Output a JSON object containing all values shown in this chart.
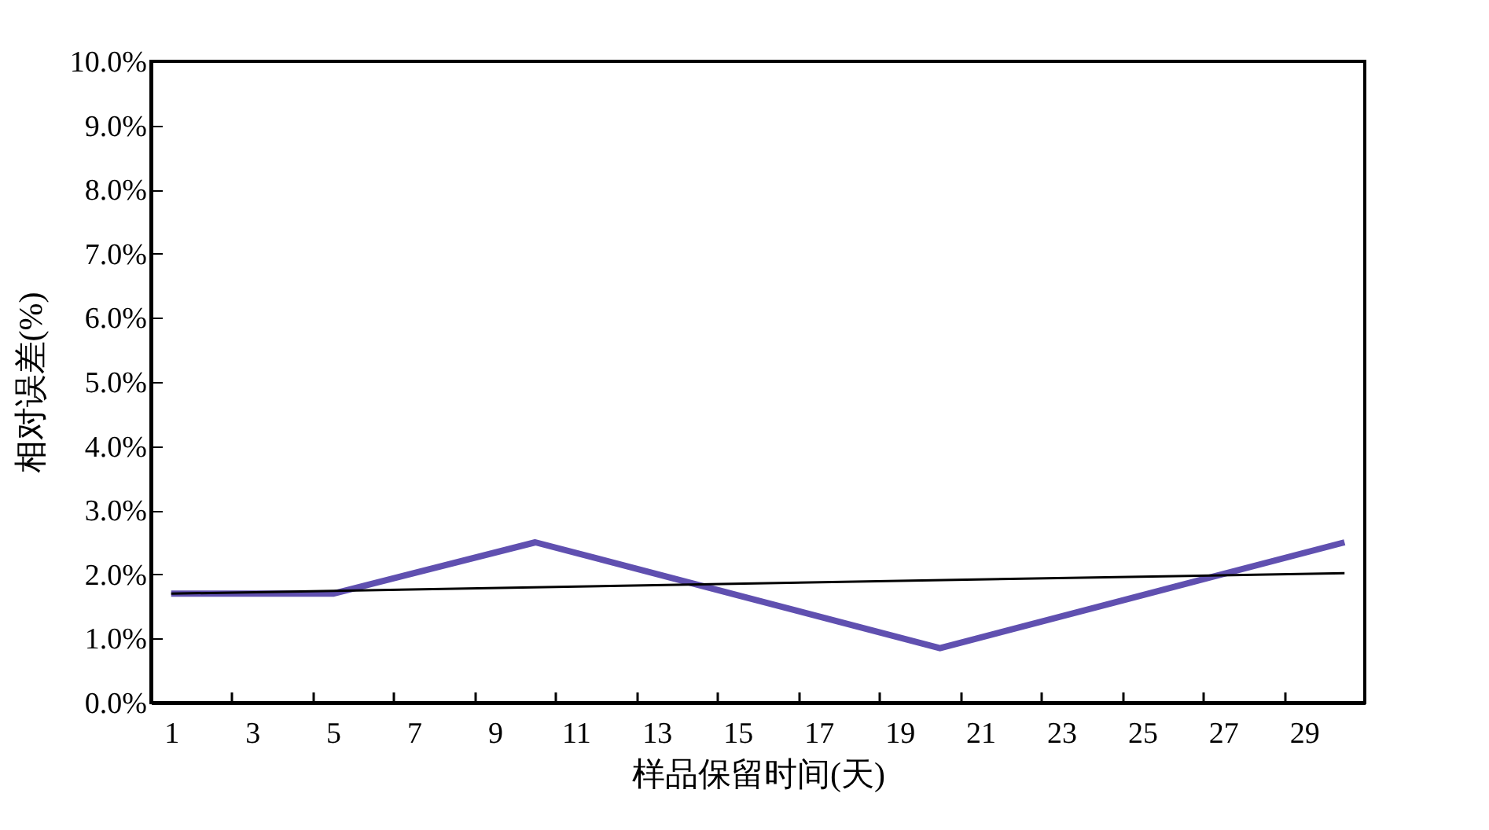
{
  "chart_data": {
    "type": "line",
    "xlabel": "样品保留时间(天)",
    "ylabel": "相对误差(%)",
    "series": [
      {
        "color": "#6050b0",
        "x": [
          1,
          5,
          10,
          20,
          30
        ],
        "values": [
          1.7,
          1.7,
          2.5,
          0.85,
          2.5
        ]
      },
      {
        "color": "#000000",
        "x": [
          1,
          30
        ],
        "values": [
          1.7,
          2.02
        ]
      }
    ],
    "xlim": [
      0.5,
      30.5
    ],
    "xticks": [
      1,
      {
        "value": 2.5,
        "label": null
      },
      3,
      {
        "value": 4.5,
        "label": null
      },
      5,
      {
        "value": 6.5,
        "label": null
      },
      7,
      {
        "value": 8.5,
        "label": null
      },
      9,
      {
        "value": 10.5,
        "label": null
      },
      11,
      {
        "value": 12.5,
        "label": null
      },
      13,
      {
        "value": 14.5,
        "label": null
      },
      15,
      {
        "value": 16.5,
        "label": null
      },
      17,
      {
        "value": 18.5,
        "label": null
      },
      19,
      {
        "value": 20.5,
        "label": null
      },
      21,
      {
        "value": 22.5,
        "label": null
      },
      23,
      {
        "value": 24.5,
        "label": null
      },
      25,
      {
        "value": 26.5,
        "label": null
      },
      27,
      {
        "value": 28.5,
        "label": null
      },
      29
    ],
    "ylim": [
      0,
      10
    ],
    "yticks": [
      {
        "value": 0,
        "label": "0.0%"
      },
      {
        "value": 1,
        "label": "1.0%"
      },
      {
        "value": 2,
        "label": "2.0%"
      },
      {
        "value": 3,
        "label": "3.0%"
      },
      {
        "value": 4,
        "label": "4.0%"
      },
      {
        "value": 5,
        "label": "5.0%"
      },
      {
        "value": 6,
        "label": "6.0%"
      },
      {
        "value": 7,
        "label": "7.0%"
      },
      {
        "value": 8,
        "label": "8.0%"
      },
      {
        "value": 9,
        "label": "9.0%"
      },
      {
        "value": 10,
        "label": "10.0%"
      }
    ],
    "grid": false,
    "marker": "none",
    "line_style": "solid"
  }
}
